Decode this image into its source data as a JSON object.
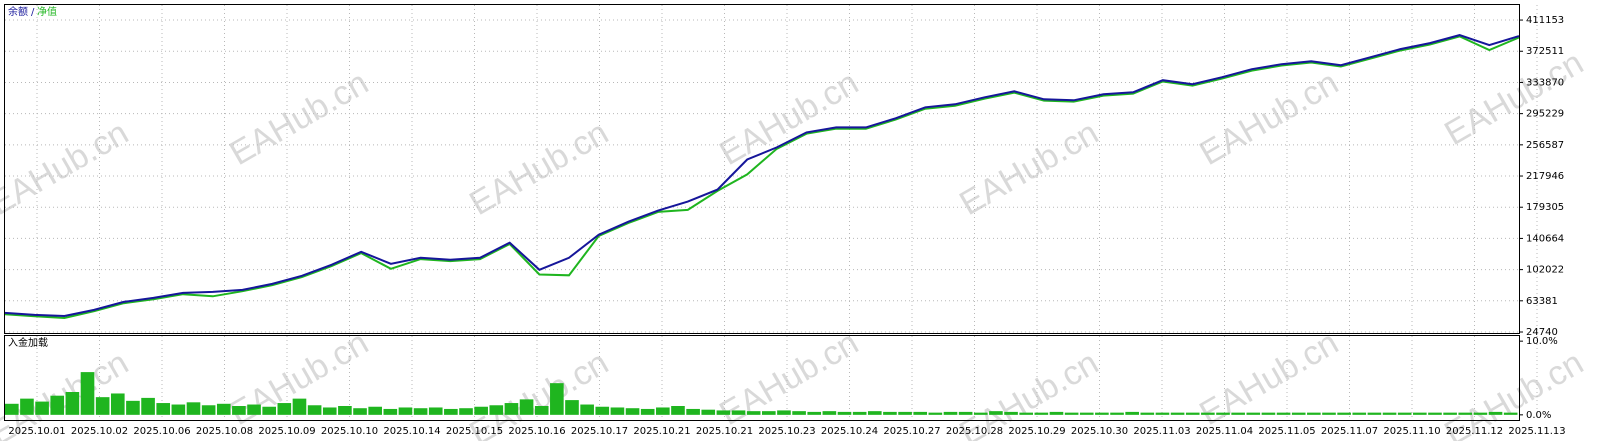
{
  "watermark": "EAHub.cn",
  "legend_separator": "/",
  "x_labels": [
    "2025.10.01",
    "2025.10.02",
    "2025.10.06",
    "2025.10.08",
    "2025.10.09",
    "2025.10.10",
    "2025.10.14",
    "2025.10.15",
    "2025.10.16",
    "2025.10.17",
    "2025.10.21",
    "2025.10.21",
    "2025.10.23",
    "2025.10.24",
    "2025.10.27",
    "2025.10.28",
    "2025.10.29",
    "2025.10.30",
    "2025.11.03",
    "2025.11.04",
    "2025.11.05",
    "2025.11.07",
    "2025.11.10",
    "2025.11.12",
    "2025.11.13"
  ],
  "chart_data": [
    {
      "type": "line",
      "ylim": [
        23500,
        429800
      ],
      "yticks": [
        24740,
        63381,
        102022,
        140664,
        179305,
        217946,
        256587,
        295229,
        333870,
        372511,
        411153
      ],
      "grid": true,
      "series": [
        {
          "name": "余额",
          "color": "#16169a",
          "values": [
            48348,
            45863,
            44620,
            52075,
            62015,
            66985,
            73198,
            74440,
            76925,
            84380,
            94320,
            107988,
            124140,
            109230,
            116685,
            114200,
            116685,
            135323,
            101775,
            116685,
            145263,
            161415,
            175083,
            186265,
            201175,
            238450,
            253360,
            271998,
            278210,
            278210,
            289393,
            303060,
            306788,
            315485,
            322940,
            313000,
            311758,
            319213,
            321698,
            336608,
            331638,
            340335,
            350275,
            356488,
            360215,
            355245,
            365185,
            375125,
            382580,
            392520,
            380095,
            391278
          ]
        },
        {
          "name": "净值",
          "color": "#1fb51f",
          "values": [
            46800,
            44200,
            42100,
            50500,
            60400,
            65300,
            71600,
            69000,
            75300,
            82800,
            92700,
            106400,
            122500,
            103000,
            115100,
            112600,
            115100,
            133700,
            96000,
            95000,
            143600,
            159800,
            173500,
            176000,
            199500,
            220000,
            251700,
            270400,
            276600,
            276600,
            287800,
            301400,
            305100,
            313900,
            321300,
            311400,
            310100,
            317600,
            320100,
            335000,
            330000,
            338700,
            348600,
            354800,
            358600,
            353600,
            363500,
            373500,
            380900,
            390900,
            374000,
            389600
          ]
        }
      ]
    },
    {
      "type": "bar",
      "title": "入金加载",
      "ylim": [
        -0.7,
        10.7
      ],
      "yticks": [
        {
          "value": 10,
          "label": "10.0%"
        },
        {
          "value": 0,
          "label": "0.0%"
        }
      ],
      "color": "#1fb51f",
      "values": [
        1.5,
        2.2,
        1.8,
        2.6,
        3.1,
        5.8,
        2.4,
        2.9,
        1.9,
        2.3,
        1.6,
        1.4,
        1.7,
        1.3,
        1.5,
        1.2,
        1.4,
        1.1,
        1.6,
        2.2,
        1.3,
        1.0,
        1.2,
        0.9,
        1.1,
        0.8,
        1.0,
        0.9,
        1.0,
        0.8,
        0.9,
        1.1,
        1.3,
        1.6,
        2.1,
        1.2,
        4.3,
        2.0,
        1.4,
        1.1,
        1.0,
        0.9,
        0.8,
        1.0,
        1.2,
        0.8,
        0.7,
        0.6,
        0.6,
        0.5,
        0.5,
        0.6,
        0.5,
        0.4,
        0.5,
        0.4,
        0.4,
        0.5,
        0.4,
        0.4,
        0.4,
        0.3,
        0.4,
        0.4,
        0.3,
        0.5,
        0.4,
        0.3,
        0.3,
        0.4,
        0.3,
        0.3,
        0.3,
        0.3,
        0.4,
        0.3,
        0.3,
        0.3,
        0.3,
        0.3,
        0.3,
        0.3,
        0.3,
        0.3,
        0.3,
        0.3,
        0.3,
        0.3,
        0.3,
        0.3,
        0.3,
        0.3,
        0.3,
        0.3,
        0.3,
        0.3,
        0.3,
        0.3,
        0.4,
        0.3
      ]
    }
  ]
}
